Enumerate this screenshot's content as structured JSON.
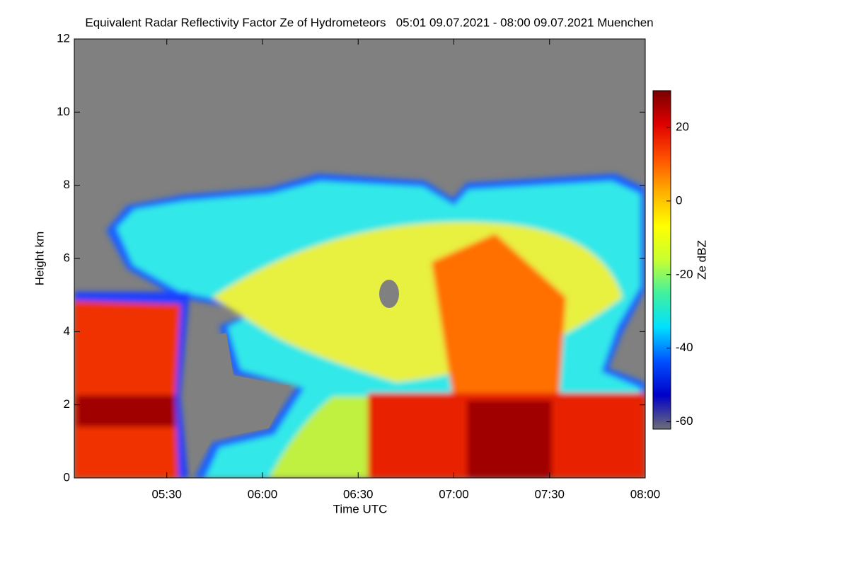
{
  "chart_data": {
    "type": "heatmap",
    "title": "Equivalent Radar Reflectivity Factor Ze of Hydrometeors   05:01 09.07.2021 - 08:00 09.07.2021 Muenchen",
    "xlabel": "Time UTC",
    "ylabel": "Height km",
    "xlim": [
      301,
      480
    ],
    "xticks": [
      {
        "value": 330,
        "label": "05:30"
      },
      {
        "value": 360,
        "label": "06:00"
      },
      {
        "value": 390,
        "label": "06:30"
      },
      {
        "value": 420,
        "label": "07:00"
      },
      {
        "value": 450,
        "label": "07:30"
      },
      {
        "value": 480,
        "label": "08:00"
      }
    ],
    "ylim": [
      0,
      12
    ],
    "yticks": [
      0,
      2,
      4,
      6,
      8,
      10,
      12
    ],
    "colorbar": {
      "label": "Ze dBZ",
      "lim": [
        -62,
        30
      ],
      "ticks": [
        -60,
        -40,
        -20,
        0,
        20
      ],
      "colors": [
        "#6e6e78",
        "#0000c8",
        "#0050ff",
        "#00e0ff",
        "#40f0a0",
        "#c8ff30",
        "#ffff00",
        "#ffb000",
        "#ff5000",
        "#e00000",
        "#780000"
      ]
    }
  }
}
